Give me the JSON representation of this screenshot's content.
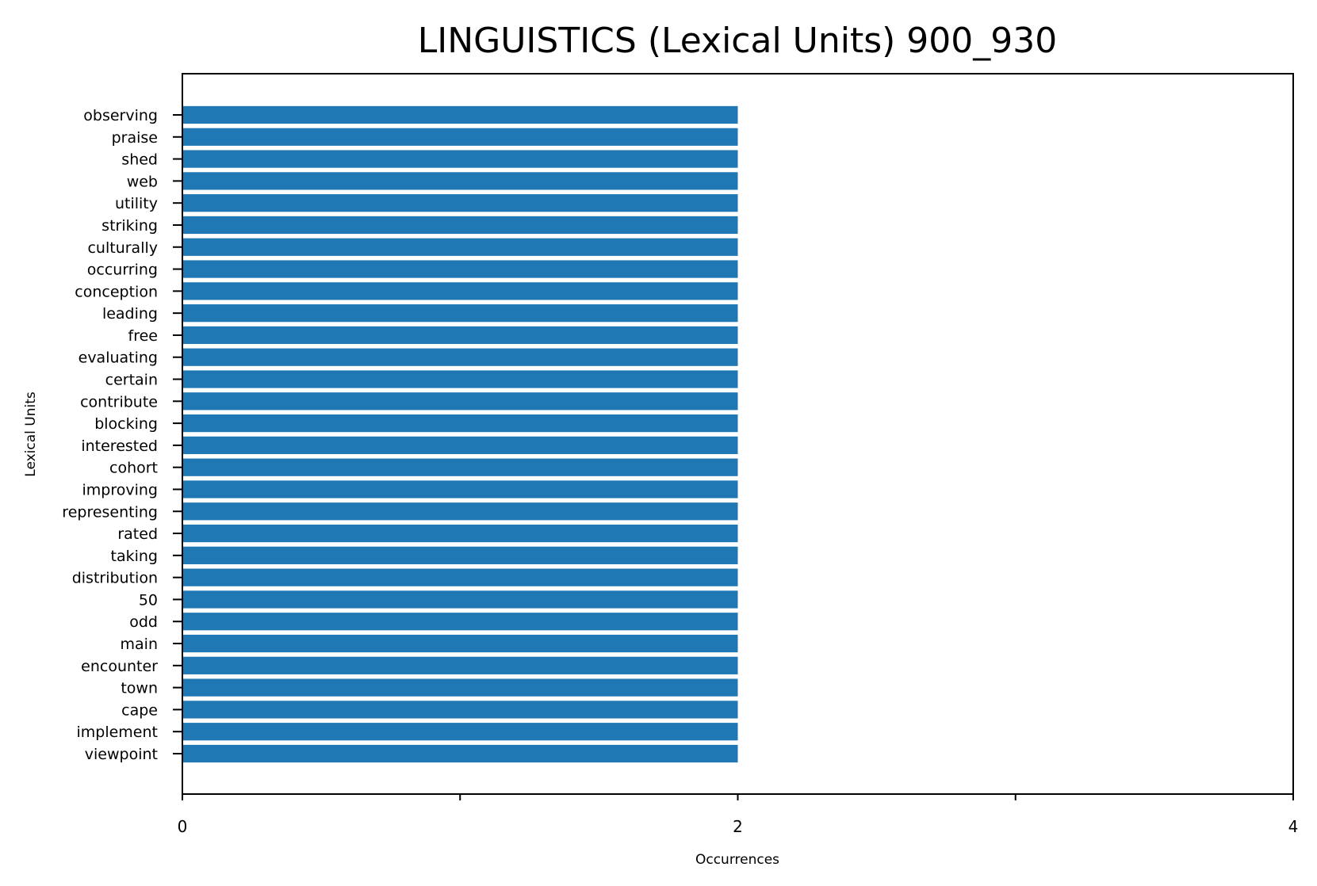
{
  "chart_data": {
    "type": "bar",
    "orientation": "horizontal",
    "title": "LINGUISTICS (Lexical Units) 900_930",
    "xlabel": "Occurrences",
    "ylabel": "Lexical Units",
    "xlim": [
      0,
      4
    ],
    "xticks": [
      0,
      1,
      2,
      3,
      4
    ],
    "xtick_labels": [
      "0",
      "",
      "2",
      "",
      "4"
    ],
    "bar_color": "#1f77b4",
    "grid": false,
    "categories": [
      "observing",
      "praise",
      "shed",
      "web",
      "utility",
      "striking",
      "culturally",
      "occurring",
      "conception",
      "leading",
      "free",
      "evaluating",
      "certain",
      "contribute",
      "blocking",
      "interested",
      "cohort",
      "improving",
      "representing",
      "rated",
      "taking",
      "distribution",
      "50",
      "odd",
      "main",
      "encounter",
      "town",
      "cape",
      "implement",
      "viewpoint"
    ],
    "values": [
      2,
      2,
      2,
      2,
      2,
      2,
      2,
      2,
      2,
      2,
      2,
      2,
      2,
      2,
      2,
      2,
      2,
      2,
      2,
      2,
      2,
      2,
      2,
      2,
      2,
      2,
      2,
      2,
      2,
      2
    ]
  }
}
